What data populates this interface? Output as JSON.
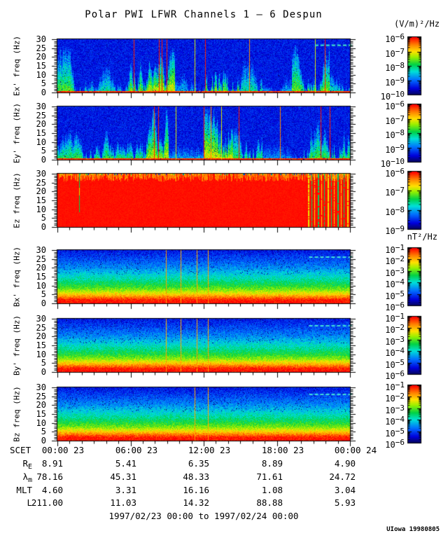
{
  "title": "Polar PWI LFWR Channels 1 — 6 Despun",
  "credit": "UIowa 19980805",
  "chart_data": {
    "type": "heatmap",
    "subtype": "spectrogram",
    "title": "Polar PWI LFWR Channels 1 — 6 Despun",
    "description": "Six stacked frequency-time spectrograms (electric channels Ex', Ey', Ez and magnetic channels Bx', By', Bz) with rainbow colorbars, 0-30 Hz, over one day.",
    "colorbar_base": "10",
    "units": {
      "electric": "(V/m)²/Hz",
      "magnetic": "nT²/Hz"
    },
    "x_axis": {
      "label": "SCET",
      "ticks": [
        "00:00 23",
        "06:00 23",
        "12:00 23",
        "18:00 23",
        "00:00 24"
      ],
      "start": "1997/02/23 00:00",
      "end": "1997/02/24 00:00"
    },
    "y_axis": {
      "ticks": [
        "30",
        "25",
        "20",
        "15",
        "10",
        "5",
        "0"
      ],
      "range": [
        0,
        30
      ],
      "unit": "Hz"
    },
    "colormap": {
      "low": "#0000dd",
      "mid": "#00cc44",
      "high": "#ff0000"
    },
    "panels": [
      {
        "key": "Ex",
        "ylabel": "Ex' freq (Hz)",
        "cbar": [
          "−6",
          "−7",
          "−8",
          "−9",
          "−10"
        ],
        "render": {
          "kind": "streaks",
          "regions": [
            {
              "x0": 0,
              "x1": 0.06,
              "h": 0.85,
              "s": 0.75
            },
            {
              "x0": 0.06,
              "x1": 0.24,
              "h": 0.5,
              "s": 0.6
            },
            {
              "x0": 0.24,
              "x1": 0.3,
              "h": 0.9,
              "s": 0.8
            },
            {
              "x0": 0.3,
              "x1": 0.4,
              "h": 0.95,
              "s": 0.95
            },
            {
              "x0": 0.4,
              "x1": 0.5,
              "h": 0.35,
              "s": 0.5
            },
            {
              "x0": 0.5,
              "x1": 0.62,
              "h": 0.95,
              "s": 0.85
            },
            {
              "x0": 0.62,
              "x1": 0.7,
              "h": 0.6,
              "s": 0.6
            },
            {
              "x0": 0.7,
              "x1": 0.8,
              "h": 0.3,
              "s": 0.45
            },
            {
              "x0": 0.8,
              "x1": 0.93,
              "h": 0.9,
              "s": 0.8
            },
            {
              "x0": 0.93,
              "x1": 1.0,
              "h": 0.5,
              "s": 0.6
            }
          ],
          "lines": [
            {
              "x": 0.26,
              "v": 1
            },
            {
              "x": 0.347,
              "v": 1
            },
            {
              "x": 0.357,
              "v": 1
            },
            {
              "x": 0.373,
              "v": 1
            },
            {
              "x": 0.469,
              "v": 0.74
            },
            {
              "x": 0.505,
              "v": 1
            },
            {
              "x": 0.655,
              "v": 0.9
            },
            {
              "x": 0.88,
              "v": 0.74
            },
            {
              "x": 0.915,
              "v": 1
            }
          ],
          "hline": {
            "f": 0.9,
            "x0": 0.88,
            "x1": 1.0,
            "color": "#45efc5"
          }
        }
      },
      {
        "key": "Ey",
        "ylabel": "Ey' freq (Hz)",
        "cbar": [
          "−6",
          "−7",
          "−8",
          "−9",
          "−10"
        ],
        "render": {
          "kind": "streaks",
          "regions": [
            {
              "x0": 0,
              "x1": 0.3,
              "h": 0.55,
              "s": 0.72
            },
            {
              "x0": 0.3,
              "x1": 0.38,
              "h": 0.95,
              "s": 0.9
            },
            {
              "x0": 0.38,
              "x1": 0.5,
              "h": 0.3,
              "s": 0.45
            },
            {
              "x0": 0.5,
              "x1": 0.6,
              "h": 0.95,
              "s": 0.95
            },
            {
              "x0": 0.6,
              "x1": 0.7,
              "h": 0.8,
              "s": 0.7
            },
            {
              "x0": 0.7,
              "x1": 0.84,
              "h": 0.3,
              "s": 0.4
            },
            {
              "x0": 0.84,
              "x1": 1.0,
              "h": 0.8,
              "s": 0.75
            }
          ],
          "lines": [
            {
              "x": 0.33,
              "v": 1
            },
            {
              "x": 0.345,
              "v": 1
            },
            {
              "x": 0.405,
              "v": 0.74
            },
            {
              "x": 0.5,
              "v": 1
            },
            {
              "x": 0.525,
              "v": 0.9
            },
            {
              "x": 0.56,
              "v": 0.74
            },
            {
              "x": 0.62,
              "v": 1
            },
            {
              "x": 0.76,
              "v": 0.9
            },
            {
              "x": 0.9,
              "v": 1
            },
            {
              "x": 0.93,
              "v": 1
            }
          ]
        }
      },
      {
        "key": "Ez",
        "ylabel": "Ez freq (Hz)",
        "cbar": [
          "−6",
          "−7",
          "−8",
          "−9"
        ],
        "render": {
          "kind": "saturated",
          "spike": 0.075,
          "stripes": {
            "x0": 0.857,
            "x1": 0.99,
            "n": 13
          }
        }
      },
      {
        "key": "Bx",
        "ylabel": "Bx' freq (Hz)",
        "cbar": [
          "−1",
          "−2",
          "−3",
          "−4",
          "−5",
          "−6"
        ],
        "render": {
          "kind": "gradient",
          "profile": [
            [
              0,
              1
            ],
            [
              0.07,
              0.98
            ],
            [
              0.12,
              0.88
            ],
            [
              0.18,
              0.76
            ],
            [
              0.25,
              0.64
            ],
            [
              0.33,
              0.55
            ],
            [
              0.45,
              0.45
            ],
            [
              0.55,
              0.38
            ],
            [
              0.67,
              0.29
            ],
            [
              0.82,
              0.21
            ],
            [
              1,
              0.13
            ]
          ],
          "lines": [
            {
              "x": 0.371,
              "v": 0.86
            },
            {
              "x": 0.421,
              "v": 0.86
            },
            {
              "x": 0.476,
              "v": 0.86
            },
            {
              "x": 0.514,
              "v": 0.86
            }
          ],
          "hline": {
            "f": 0.88,
            "x0": 0.86,
            "x1": 0.995,
            "color": "#45e8d8"
          }
        }
      },
      {
        "key": "By",
        "ylabel": "By' freq (Hz)",
        "cbar": [
          "−1",
          "−2",
          "−3",
          "−4",
          "−5",
          "−6"
        ],
        "render": {
          "kind": "gradient",
          "profile": [
            [
              0,
              1
            ],
            [
              0.07,
              0.98
            ],
            [
              0.12,
              0.88
            ],
            [
              0.18,
              0.76
            ],
            [
              0.25,
              0.64
            ],
            [
              0.33,
              0.55
            ],
            [
              0.45,
              0.45
            ],
            [
              0.55,
              0.38
            ],
            [
              0.67,
              0.29
            ],
            [
              0.82,
              0.21
            ],
            [
              1,
              0.13
            ]
          ],
          "lines": [
            {
              "x": 0.371,
              "v": 0.86
            },
            {
              "x": 0.421,
              "v": 0.86
            },
            {
              "x": 0.476,
              "v": 0.86
            },
            {
              "x": 0.514,
              "v": 0.86
            }
          ],
          "hline": {
            "f": 0.88,
            "x0": 0.86,
            "x1": 0.995,
            "color": "#45e8d8"
          }
        }
      },
      {
        "key": "Bz",
        "ylabel": "Bz freq (Hz)",
        "cbar": [
          "−1",
          "−2",
          "−3",
          "−4",
          "−5",
          "−6"
        ],
        "render": {
          "kind": "gradient",
          "profile": [
            [
              0,
              1
            ],
            [
              0.07,
              0.98
            ],
            [
              0.12,
              0.88
            ],
            [
              0.18,
              0.76
            ],
            [
              0.25,
              0.64
            ],
            [
              0.33,
              0.55
            ],
            [
              0.45,
              0.45
            ],
            [
              0.55,
              0.38
            ],
            [
              0.67,
              0.29
            ],
            [
              0.82,
              0.21
            ],
            [
              1,
              0.13
            ]
          ],
          "lines": [
            {
              "x": 0.469,
              "v": 0.86
            },
            {
              "x": 0.514,
              "v": 0.86
            }
          ],
          "hline": {
            "f": 0.88,
            "x0": 0.86,
            "x1": 0.995,
            "color": "#45e8d8"
          }
        }
      }
    ],
    "ephemeris": {
      "scet_label": "SCET",
      "rows": [
        {
          "label": "R",
          "sub": "E",
          "values": [
            "8.91",
            "5.41",
            "6.35",
            "8.89",
            "4.90"
          ]
        },
        {
          "label": "λ",
          "sub": "m",
          "values": [
            "78.16",
            "45.31",
            "48.33",
            "71.61",
            "24.72"
          ]
        },
        {
          "label": "MLT",
          "sub": "",
          "values": [
            "4.60",
            "3.31",
            "16.16",
            "1.08",
            "3.04"
          ]
        },
        {
          "label": "L",
          "sub": "",
          "values": [
            "211.00",
            "11.03",
            "14.32",
            "88.88",
            "5.93"
          ]
        }
      ],
      "date_range": "1997/02/23 00:00 to 1997/02/24 00:00"
    }
  }
}
